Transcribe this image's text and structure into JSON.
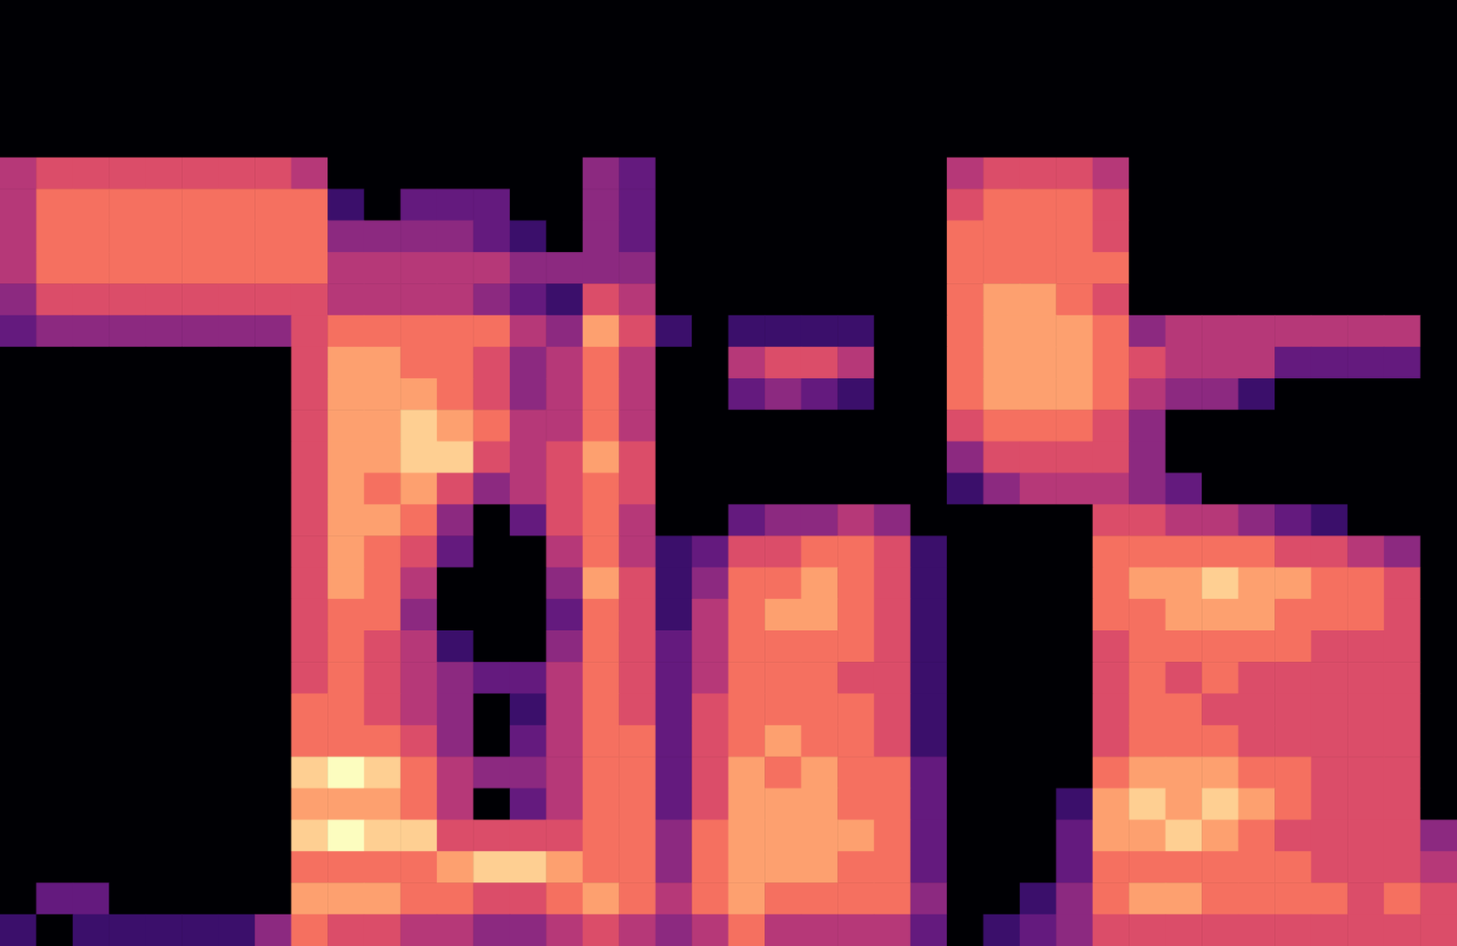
{
  "chart_data": {
    "type": "heatmap",
    "color": "magma",
    "tick_labels": false,
    "grid": false,
    "zlim": [
      0,
      10
    ],
    "z": [
      [
        0,
        0,
        0,
        0,
        0,
        0,
        0,
        0,
        0,
        0,
        0,
        0,
        0,
        0,
        0,
        0,
        0,
        0,
        0,
        0,
        0,
        0,
        0,
        0,
        0,
        0,
        0,
        0,
        0,
        0,
        0,
        0,
        0,
        0,
        0,
        0,
        0,
        0,
        0,
        0
      ],
      [
        0,
        0,
        0,
        0,
        0,
        0,
        0,
        0,
        0,
        0,
        0,
        0,
        0,
        0,
        0,
        0,
        0,
        0,
        0,
        0,
        0,
        0,
        0,
        0,
        0,
        0,
        0,
        0,
        0,
        0,
        0,
        0,
        0,
        0,
        0,
        0,
        0,
        0,
        0,
        0
      ],
      [
        0,
        0,
        0,
        0,
        0,
        0,
        0,
        0,
        0,
        0,
        0,
        0,
        0,
        0,
        0,
        0,
        0,
        0,
        0,
        0,
        0,
        0,
        0,
        0,
        0,
        0,
        0,
        0,
        0,
        0,
        0,
        0,
        0,
        0,
        0,
        0,
        0,
        0,
        0,
        0
      ],
      [
        0,
        0,
        0,
        0,
        0,
        0,
        0,
        0,
        0,
        0,
        0,
        0,
        0,
        0,
        0,
        0,
        0,
        0,
        0,
        0,
        0,
        0,
        0,
        0,
        0,
        0,
        0,
        0,
        0,
        0,
        0,
        0,
        0,
        0,
        0,
        0,
        0,
        0,
        0,
        0
      ],
      [
        0,
        0,
        0,
        0,
        0,
        0,
        0,
        0,
        0,
        0,
        0,
        0,
        0,
        0,
        0,
        0,
        0,
        0,
        0,
        0,
        0,
        0,
        0,
        0,
        0,
        0,
        0,
        0,
        0,
        0,
        0,
        0,
        0,
        0,
        0,
        0,
        0,
        0,
        0,
        0
      ],
      [
        5,
        6,
        6,
        6,
        6,
        6,
        6,
        6,
        5,
        0,
        0,
        0,
        0,
        0,
        0,
        0,
        4,
        3,
        0,
        0,
        0,
        0,
        0,
        0,
        0,
        0,
        5,
        6,
        6,
        6,
        5,
        0,
        0,
        0,
        0,
        0,
        0,
        0,
        0,
        0
      ],
      [
        5,
        7,
        7,
        7,
        7,
        7,
        7,
        7,
        7,
        2,
        0,
        3,
        3,
        3,
        0,
        0,
        4,
        3,
        0,
        0,
        0,
        0,
        0,
        0,
        0,
        0,
        6,
        7,
        7,
        7,
        6,
        0,
        0,
        0,
        0,
        0,
        0,
        0,
        0,
        0
      ],
      [
        5,
        7,
        7,
        7,
        7,
        7,
        7,
        7,
        7,
        4,
        4,
        4,
        4,
        3,
        2,
        0,
        4,
        3,
        0,
        0,
        0,
        0,
        0,
        0,
        0,
        0,
        7,
        7,
        7,
        7,
        6,
        0,
        0,
        0,
        0,
        0,
        0,
        0,
        0,
        0
      ],
      [
        5,
        7,
        7,
        7,
        7,
        7,
        7,
        7,
        7,
        5,
        5,
        5,
        5,
        5,
        4,
        4,
        4,
        4,
        0,
        0,
        0,
        0,
        0,
        0,
        0,
        0,
        7,
        7,
        7,
        7,
        7,
        0,
        0,
        0,
        0,
        0,
        0,
        0,
        0,
        0
      ],
      [
        4,
        6,
        6,
        6,
        6,
        6,
        6,
        6,
        6,
        5,
        5,
        5,
        5,
        4,
        3,
        2,
        6,
        5,
        0,
        0,
        0,
        0,
        0,
        0,
        0,
        0,
        7,
        8,
        8,
        7,
        6,
        0,
        0,
        0,
        0,
        0,
        0,
        0,
        0,
        0
      ],
      [
        3,
        4,
        4,
        4,
        4,
        4,
        4,
        4,
        6,
        7,
        7,
        7,
        7,
        7,
        5,
        4,
        8,
        6,
        2,
        0,
        2,
        2,
        2,
        2,
        0,
        0,
        7,
        8,
        8,
        8,
        7,
        4,
        5,
        5,
        5,
        5,
        5,
        5,
        5,
        0
      ],
      [
        0,
        0,
        0,
        0,
        0,
        0,
        0,
        0,
        6,
        8,
        8,
        7,
        7,
        6,
        4,
        5,
        7,
        5,
        0,
        0,
        5,
        6,
        6,
        5,
        0,
        0,
        7,
        8,
        8,
        8,
        7,
        6,
        5,
        5,
        5,
        3,
        3,
        3,
        3,
        0
      ],
      [
        0,
        0,
        0,
        0,
        0,
        0,
        0,
        0,
        6,
        8,
        8,
        8,
        7,
        6,
        4,
        5,
        7,
        5,
        0,
        0,
        3,
        4,
        3,
        2,
        0,
        0,
        7,
        8,
        8,
        8,
        7,
        5,
        4,
        4,
        2,
        0,
        0,
        0,
        0,
        0
      ],
      [
        0,
        0,
        0,
        0,
        0,
        0,
        0,
        0,
        6,
        8,
        8,
        9,
        8,
        7,
        5,
        5,
        7,
        5,
        0,
        0,
        0,
        0,
        0,
        0,
        0,
        0,
        6,
        7,
        7,
        7,
        6,
        4,
        0,
        0,
        0,
        0,
        0,
        0,
        0,
        0
      ],
      [
        0,
        0,
        0,
        0,
        0,
        0,
        0,
        0,
        6,
        8,
        8,
        9,
        9,
        6,
        5,
        6,
        8,
        6,
        0,
        0,
        0,
        0,
        0,
        0,
        0,
        0,
        4,
        6,
        6,
        6,
        6,
        4,
        0,
        0,
        0,
        0,
        0,
        0,
        0,
        0
      ],
      [
        0,
        0,
        0,
        0,
        0,
        0,
        0,
        0,
        6,
        8,
        7,
        8,
        6,
        4,
        5,
        6,
        7,
        6,
        0,
        0,
        0,
        0,
        0,
        0,
        0,
        0,
        2,
        4,
        5,
        5,
        5,
        4,
        3,
        0,
        0,
        0,
        0,
        0,
        0,
        0
      ],
      [
        0,
        0,
        0,
        0,
        0,
        0,
        0,
        0,
        6,
        8,
        8,
        7,
        4,
        0,
        3,
        6,
        7,
        5,
        0,
        0,
        3,
        4,
        4,
        5,
        4,
        0,
        0,
        0,
        0,
        0,
        6,
        6,
        5,
        5,
        4,
        3,
        2,
        0,
        0,
        0
      ],
      [
        0,
        0,
        0,
        0,
        0,
        0,
        0,
        0,
        6,
        8,
        7,
        6,
        3,
        0,
        0,
        5,
        7,
        5,
        2,
        3,
        6,
        6,
        7,
        7,
        6,
        2,
        0,
        0,
        0,
        0,
        7,
        7,
        7,
        7,
        7,
        6,
        6,
        5,
        4,
        0
      ],
      [
        0,
        0,
        0,
        0,
        0,
        0,
        0,
        0,
        6,
        8,
        7,
        5,
        0,
        0,
        0,
        4,
        8,
        6,
        2,
        4,
        7,
        7,
        8,
        7,
        6,
        2,
        0,
        0,
        0,
        0,
        7,
        8,
        8,
        9,
        8,
        8,
        7,
        7,
        6,
        0
      ],
      [
        0,
        0,
        0,
        0,
        0,
        0,
        0,
        0,
        6,
        7,
        7,
        4,
        0,
        0,
        0,
        3,
        7,
        6,
        2,
        5,
        7,
        8,
        8,
        7,
        6,
        2,
        0,
        0,
        0,
        0,
        7,
        7,
        8,
        8,
        8,
        7,
        7,
        7,
        6,
        0
      ],
      [
        0,
        0,
        0,
        0,
        0,
        0,
        0,
        0,
        6,
        7,
        6,
        5,
        2,
        0,
        0,
        4,
        7,
        6,
        3,
        5,
        7,
        7,
        7,
        7,
        6,
        2,
        0,
        0,
        0,
        0,
        6,
        7,
        7,
        7,
        7,
        7,
        6,
        6,
        6,
        0
      ],
      [
        0,
        0,
        0,
        0,
        0,
        0,
        0,
        0,
        6,
        7,
        6,
        5,
        4,
        3,
        3,
        5,
        7,
        6,
        3,
        5,
        7,
        7,
        7,
        6,
        6,
        2,
        0,
        0,
        0,
        0,
        6,
        7,
        6,
        7,
        6,
        6,
        6,
        6,
        6,
        0
      ],
      [
        0,
        0,
        0,
        0,
        0,
        0,
        0,
        0,
        7,
        7,
        6,
        5,
        4,
        0,
        2,
        5,
        7,
        6,
        3,
        6,
        7,
        7,
        7,
        7,
        6,
        2,
        0,
        0,
        0,
        0,
        6,
        7,
        7,
        6,
        6,
        6,
        6,
        6,
        6,
        0
      ],
      [
        0,
        0,
        0,
        0,
        0,
        0,
        0,
        0,
        7,
        7,
        7,
        6,
        4,
        0,
        3,
        5,
        7,
        7,
        3,
        6,
        7,
        8,
        7,
        7,
        6,
        2,
        0,
        0,
        0,
        0,
        6,
        7,
        7,
        7,
        6,
        6,
        6,
        6,
        6,
        0
      ],
      [
        0,
        0,
        0,
        0,
        0,
        0,
        0,
        0,
        9,
        10,
        9,
        7,
        5,
        4,
        4,
        5,
        7,
        7,
        3,
        6,
        8,
        7,
        8,
        7,
        7,
        3,
        0,
        0,
        0,
        0,
        7,
        8,
        8,
        8,
        7,
        7,
        6,
        6,
        6,
        0
      ],
      [
        0,
        0,
        0,
        0,
        0,
        0,
        0,
        0,
        8,
        8,
        8,
        7,
        5,
        0,
        3,
        5,
        7,
        7,
        3,
        6,
        8,
        8,
        8,
        7,
        7,
        3,
        0,
        0,
        0,
        2,
        8,
        9,
        8,
        9,
        8,
        7,
        6,
        6,
        6,
        0
      ],
      [
        0,
        0,
        0,
        0,
        0,
        0,
        0,
        0,
        9,
        10,
        9,
        9,
        6,
        6,
        6,
        6,
        7,
        7,
        4,
        7,
        8,
        8,
        8,
        8,
        7,
        3,
        0,
        0,
        0,
        3,
        8,
        8,
        9,
        8,
        7,
        6,
        6,
        6,
        6,
        4
      ],
      [
        0,
        0,
        0,
        0,
        0,
        0,
        0,
        0,
        7,
        7,
        7,
        7,
        8,
        9,
        9,
        8,
        7,
        7,
        4,
        7,
        8,
        8,
        8,
        7,
        7,
        3,
        0,
        0,
        0,
        3,
        7,
        7,
        7,
        7,
        7,
        7,
        6,
        6,
        6,
        5
      ],
      [
        0,
        3,
        3,
        0,
        0,
        0,
        0,
        0,
        8,
        8,
        8,
        7,
        7,
        6,
        6,
        7,
        8,
        7,
        5,
        7,
        8,
        7,
        7,
        7,
        7,
        4,
        0,
        0,
        2,
        4,
        7,
        8,
        8,
        7,
        7,
        7,
        7,
        6,
        7,
        6
      ],
      [
        2,
        0,
        2,
        2,
        2,
        2,
        2,
        4,
        7,
        6,
        6,
        5,
        5,
        4,
        4,
        5,
        6,
        5,
        4,
        5,
        7,
        5,
        5,
        5,
        5,
        3,
        0,
        2,
        3,
        4,
        6,
        6,
        6,
        6,
        6,
        6,
        6,
        6,
        6,
        6
      ]
    ]
  }
}
